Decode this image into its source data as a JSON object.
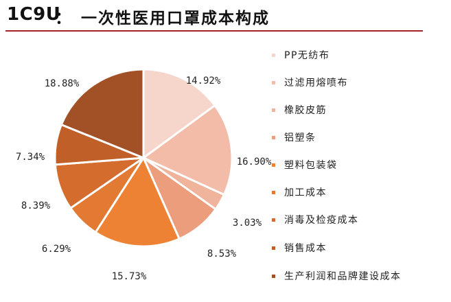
{
  "header": {
    "id": "1C9U",
    "separator": "：",
    "title": "一次性医用口罩成本构成"
  },
  "colors": {
    "title_rule": "#a5202a"
  },
  "chart_data": {
    "type": "pie",
    "title": "一次性医用口罩成本构成",
    "start_angle_deg": 0,
    "direction": "clockwise",
    "legend_position": "right",
    "slices": [
      {
        "label": "PP无纺布",
        "value": 14.92,
        "value_label": "14.92%",
        "color": "#f6d5ca"
      },
      {
        "label": "过滤用熔喷布",
        "value": 16.9,
        "value_label": "16.90%",
        "color": "#f3bca8"
      },
      {
        "label": "橡胶皮筋",
        "value": 3.03,
        "value_label": "3.03%",
        "color": "#f0b49d"
      },
      {
        "label": "铝塑条",
        "value": 8.53,
        "value_label": "8.53%",
        "color": "#ec9d7c"
      },
      {
        "label": "塑料包装袋",
        "value": 15.73,
        "value_label": "15.73%",
        "color": "#ed8234"
      },
      {
        "label": "加工成本",
        "value": 6.29,
        "value_label": "6.29%",
        "color": "#e27a33"
      },
      {
        "label": "消毒及检疫成本",
        "value": 8.39,
        "value_label": "8.39%",
        "color": "#d36c2c"
      },
      {
        "label": "销售成本",
        "value": 7.34,
        "value_label": "7.34%",
        "color": "#c05f28"
      },
      {
        "label": "生产利润和品牌建设成本",
        "value": 18.88,
        "value_label": "18.88%",
        "color": "#a25127"
      }
    ]
  }
}
